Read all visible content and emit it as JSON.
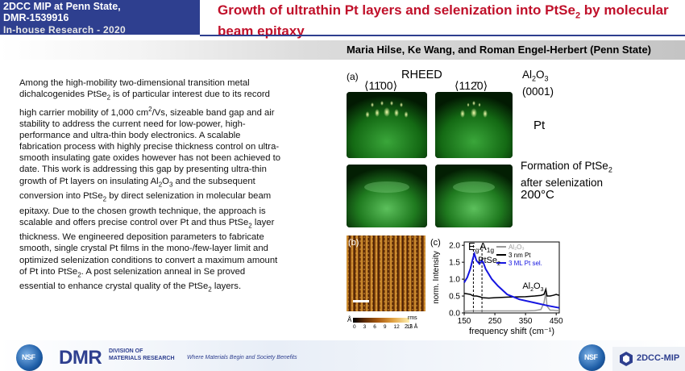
{
  "header": {
    "program_line1": "2DCC MIP at  Penn State,",
    "program_line2": "DMR-1539916",
    "inhouse": "In-house Research - 2020",
    "title_part1": "Growth of ultrathin Pt layers and selenization into PtSe",
    "title_sub": "2",
    "title_part2": " by molecular beam epitaxy"
  },
  "authors": "Maria Hilse, Ke Wang, and Roman Engel-Herbert (Penn State)",
  "body": {
    "s1": "Among the high-mobility two-dimensional transition metal dichalcogenides PtSe",
    "s2": " is of particular interest due to its record high carrier mobility of 1,000 cm",
    "s3": "/Vs, sizeable band gap and air stability to address the current need for low-power, high-performance and ultra-thin  body electronics. A scalable fabrication process with highly precise thickness control on ultra-smooth insulating gate oxides however has not been achieved to date. This work is addressing this gap by presenting ultra-thin growth of Pt layers on insulating Al",
    "s4": "O",
    "s5": " and the subsequent conversion into PtSe",
    "s6": " by direct selenization in molecular beam epitaxy. Due to the chosen growth technique, the approach is scalable and offers precise control over Pt and thus PtSe",
    "s7": " layer thickness. We engineered deposition parameters to fabricate smooth, single crystal Pt films in the mono-/few-layer limit and optimized selenization conditions to convert a maximum amount of Pt into PtSe",
    "s8": ". A post selenization anneal in Se proved essential to enhance crystal quality of the PtSe",
    "s9": " layers.",
    "sub2": "2",
    "sub3": "3",
    "sup2": "2"
  },
  "figure": {
    "panel_a": "(a)",
    "rheed": "RHEED",
    "dir1": "⟨11̄00⟩",
    "dir2": "⟨112̄0⟩",
    "substrate_line1": "Al",
    "substrate_sub2": "2",
    "substrate_O": "O",
    "substrate_sub3": "3",
    "substrate_line2": "(0001)",
    "pt_label": "Pt",
    "formation_line1": "Formation of PtSe",
    "formation_sub": "2",
    "formation_line2": "after selenization",
    "temperature": "200°C",
    "panel_b": "(b)",
    "afm_unit": "Å",
    "afm_ticks": [
      "0",
      "3",
      "6",
      "9",
      "12",
      "15"
    ],
    "afm_rms_label": "rms",
    "afm_rms_value": "2.2 Å",
    "panel_c": "(c)"
  },
  "chart_data": {
    "type": "line",
    "xlabel": "frequency shift (cm⁻¹)",
    "ylabel": "norm. Intensity",
    "xlim": [
      150,
      460
    ],
    "ylim": [
      0,
      2.1
    ],
    "xticks": [
      "150",
      "250",
      "350",
      "450"
    ],
    "yticks": [
      "0.0",
      "0.5",
      "1.0",
      "1.5",
      "2.0"
    ],
    "legend": [
      "Al₂O₃",
      "3 nm Pt",
      "3 ML Pt sel."
    ],
    "annotations": {
      "eg": "E",
      "eg_sub": "g",
      "a1g": "A",
      "a1g_sub": "1g",
      "ptse2": "PtSe",
      "ptse2_sub": "2",
      "al2o3": "Al",
      "al2o3_sub1": "2",
      "al2o3_o": "O",
      "al2o3_sub2": "3"
    },
    "dashed_lines_x": [
      180,
      208
    ],
    "series": [
      {
        "name": "Al₂O₃",
        "color": "#9a9a9a",
        "x": [
          150,
          170,
          190,
          210,
          250,
          300,
          350,
          380,
          400,
          410,
          416,
          420,
          430,
          440,
          450,
          460
        ],
        "y": [
          0.05,
          0.06,
          0.06,
          0.06,
          0.06,
          0.06,
          0.06,
          0.07,
          0.1,
          0.3,
          0.6,
          0.2,
          0.08,
          0.08,
          0.07,
          0.07
        ]
      },
      {
        "name": "3 nm Pt",
        "color": "#000000",
        "x": [
          150,
          170,
          180,
          190,
          200,
          210,
          230,
          250,
          300,
          350,
          380,
          400,
          410,
          416,
          420,
          430,
          440,
          450,
          460
        ],
        "y": [
          0.58,
          0.55,
          0.5,
          0.5,
          0.48,
          0.45,
          0.44,
          0.45,
          0.47,
          0.48,
          0.5,
          0.52,
          0.55,
          0.7,
          0.5,
          0.5,
          0.52,
          0.55,
          0.52
        ]
      },
      {
        "name": "3 ML Pt sel.",
        "color": "#1515e0",
        "x": [
          150,
          160,
          170,
          178,
          183,
          190,
          200,
          207,
          212,
          220,
          240,
          260,
          290,
          330,
          380,
          420,
          460
        ],
        "y": [
          0.9,
          1.05,
          1.3,
          1.6,
          1.75,
          1.55,
          1.45,
          1.55,
          1.5,
          1.3,
          1.0,
          0.8,
          0.55,
          0.4,
          0.3,
          0.22,
          0.15
        ]
      }
    ]
  },
  "footer": {
    "nsf": "NSF",
    "dmr": "DMR",
    "division_line1": "DIVISION OF",
    "division_line2": "MATERIALS RESEARCH",
    "tagline": "Where Materials Begin and Society Benefits",
    "cc_name": "2DCC-MIP"
  },
  "colors": {
    "accent_blue": "#2e3f8f",
    "title_red": "#c0102a",
    "rheed_green": "#1a8a1a"
  }
}
